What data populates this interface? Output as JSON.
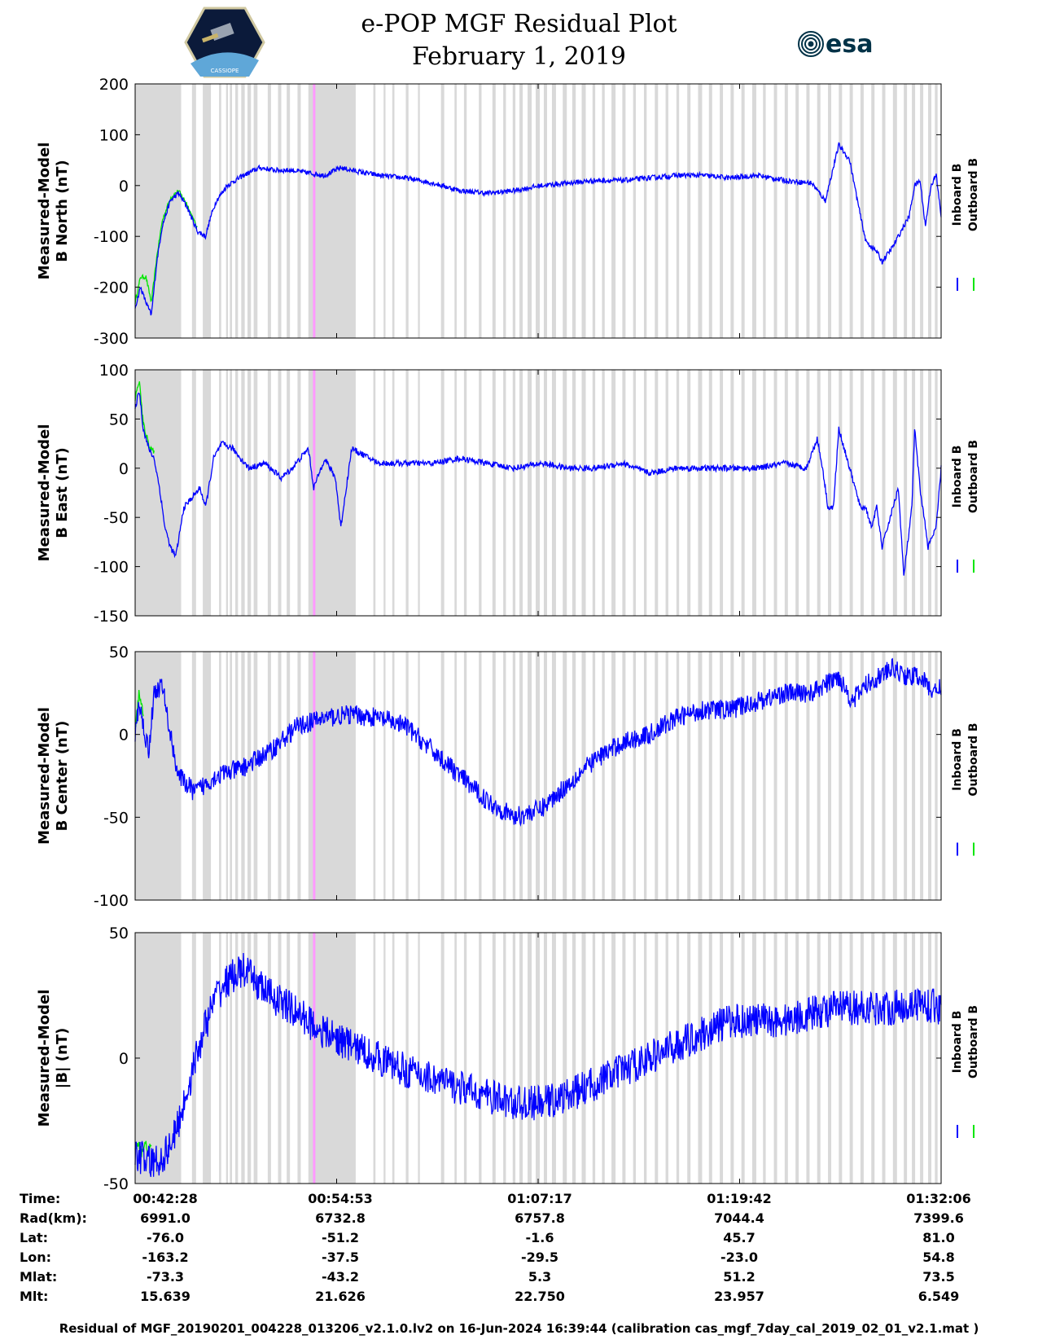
{
  "header": {
    "title_line1": "e-POP MGF Residual Plot",
    "title_line2": "February 1, 2019",
    "left_logo": "cassiope-mission-logo",
    "left_logo_text": "CASSIOPE",
    "right_logo": "esa-logo",
    "right_logo_text": "esa"
  },
  "colors": {
    "inboard": "#0000ff",
    "outboard": "#00e600",
    "shade": "#d9d9d9",
    "marker": "#ff99ff",
    "axis": "#000000"
  },
  "legend": {
    "inboard": "Inboard B",
    "outboard": "Outboard B"
  },
  "chart_data": [
    {
      "type": "line",
      "title": "",
      "ylabel": [
        "Measured-Model",
        "B North (nT)"
      ],
      "ylim": [
        -300,
        200
      ],
      "yticks": [
        200,
        100,
        0,
        -100,
        -200,
        -300
      ],
      "x_range_s": [
        0,
        2978
      ],
      "series": [
        {
          "name": "Inboard B",
          "noise": 5,
          "x": [
            0,
            20,
            40,
            60,
            80,
            100,
            130,
            160,
            190,
            230,
            260,
            280,
            300,
            340,
            400,
            460,
            520,
            580,
            640,
            700,
            760,
            800,
            900,
            1000,
            1100,
            1200,
            1300,
            1400,
            1500,
            1600,
            1700,
            1800,
            1900,
            2000,
            2100,
            2200,
            2300,
            2400,
            2500,
            2550,
            2600,
            2640,
            2680,
            2700,
            2740,
            2760,
            2800,
            2830,
            2860,
            2880,
            2900,
            2920,
            2940,
            2960,
            2978
          ],
          "y": [
            -240,
            -200,
            -230,
            -255,
            -150,
            -80,
            -30,
            -15,
            -40,
            -90,
            -100,
            -60,
            -30,
            0,
            20,
            35,
            30,
            30,
            25,
            20,
            35,
            30,
            20,
            15,
            5,
            -10,
            -15,
            -10,
            0,
            5,
            10,
            10,
            15,
            20,
            20,
            15,
            20,
            10,
            5,
            -30,
            80,
            50,
            -60,
            -110,
            -130,
            -150,
            -120,
            -90,
            -60,
            0,
            10,
            -80,
            0,
            20,
            -60
          ]
        },
        {
          "name": "Outboard B",
          "noise": 4,
          "x": [
            0,
            20,
            40,
            60,
            80,
            100,
            130,
            160,
            190,
            230
          ],
          "y": [
            -230,
            -180,
            -180,
            -230,
            -140,
            -70,
            -25,
            -10,
            -35,
            -85
          ]
        }
      ]
    },
    {
      "type": "line",
      "title": "",
      "ylabel": [
        "Measured-Model",
        "B East (nT)"
      ],
      "ylim": [
        -150,
        100
      ],
      "yticks": [
        100,
        50,
        0,
        -50,
        -100,
        -150
      ],
      "x_range_s": [
        0,
        2978
      ],
      "series": [
        {
          "name": "Inboard B",
          "noise": 3,
          "x": [
            0,
            15,
            30,
            50,
            70,
            90,
            110,
            130,
            150,
            180,
            210,
            240,
            260,
            290,
            320,
            360,
            420,
            480,
            540,
            580,
            640,
            660,
            700,
            740,
            760,
            800,
            900,
            1000,
            1100,
            1200,
            1300,
            1400,
            1500,
            1600,
            1700,
            1800,
            1900,
            2000,
            2100,
            2200,
            2300,
            2400,
            2480,
            2520,
            2540,
            2560,
            2580,
            2600,
            2640,
            2680,
            2700,
            2720,
            2740,
            2760,
            2780,
            2820,
            2840,
            2870,
            2880,
            2900,
            2930,
            2960,
            2978
          ],
          "y": [
            60,
            80,
            40,
            20,
            10,
            -20,
            -60,
            -80,
            -90,
            -40,
            -30,
            -20,
            -40,
            10,
            25,
            20,
            0,
            5,
            -10,
            0,
            20,
            -20,
            10,
            -10,
            -60,
            20,
            5,
            5,
            5,
            10,
            5,
            0,
            5,
            0,
            0,
            5,
            -5,
            0,
            0,
            0,
            0,
            5,
            0,
            30,
            0,
            -40,
            -40,
            40,
            0,
            -40,
            -40,
            -60,
            -40,
            -80,
            -60,
            -20,
            -110,
            -40,
            40,
            -20,
            -80,
            -60,
            0
          ]
        },
        {
          "name": "Outboard B",
          "noise": 3,
          "x": [
            0,
            15,
            30,
            50,
            70
          ],
          "y": [
            70,
            90,
            45,
            25,
            15
          ]
        }
      ]
    },
    {
      "type": "line",
      "title": "",
      "ylabel": [
        "Measured-Model",
        "B Center (nT)"
      ],
      "ylim": [
        -100,
        50
      ],
      "yticks": [
        50,
        0,
        -50,
        -100
      ],
      "x_range_s": [
        0,
        2978
      ],
      "series": [
        {
          "name": "Inboard B",
          "noise": 6,
          "x": [
            0,
            15,
            30,
            50,
            70,
            100,
            130,
            160,
            190,
            220,
            260,
            300,
            400,
            500,
            600,
            700,
            800,
            900,
            1000,
            1100,
            1200,
            1300,
            1400,
            1500,
            1600,
            1700,
            1800,
            1900,
            2000,
            2100,
            2200,
            2300,
            2400,
            2500,
            2600,
            2650,
            2700,
            2750,
            2800,
            2850,
            2900,
            2950,
            2978
          ],
          "y": [
            0,
            20,
            5,
            -10,
            25,
            30,
            0,
            -25,
            -30,
            -35,
            -30,
            -25,
            -20,
            -10,
            5,
            10,
            12,
            10,
            5,
            -10,
            -25,
            -40,
            -50,
            -45,
            -30,
            -15,
            -5,
            0,
            10,
            15,
            15,
            20,
            25,
            25,
            35,
            20,
            30,
            35,
            40,
            35,
            35,
            25,
            30
          ]
        },
        {
          "name": "Outboard B",
          "noise": 4,
          "x": [
            0,
            15,
            30
          ],
          "y": [
            5,
            25,
            10
          ]
        }
      ]
    },
    {
      "type": "line",
      "title": "",
      "ylabel": [
        "Measured-Model",
        "|B| (nT)"
      ],
      "ylim": [
        -50,
        50
      ],
      "yticks": [
        50,
        0,
        -50
      ],
      "x_range_s": [
        0,
        2978
      ],
      "series": [
        {
          "name": "Inboard B",
          "noise": 7,
          "x": [
            0,
            60,
            100,
            150,
            200,
            250,
            300,
            350,
            400,
            450,
            500,
            600,
            700,
            800,
            900,
            1000,
            1100,
            1200,
            1300,
            1400,
            1500,
            1600,
            1700,
            1800,
            1900,
            2000,
            2100,
            2200,
            2300,
            2400,
            2500,
            2600,
            2700,
            2800,
            2900,
            2978
          ],
          "y": [
            -38,
            -42,
            -40,
            -30,
            -10,
            10,
            25,
            32,
            35,
            30,
            25,
            18,
            10,
            5,
            0,
            -5,
            -8,
            -12,
            -15,
            -18,
            -18,
            -15,
            -10,
            -5,
            0,
            5,
            10,
            15,
            15,
            15,
            18,
            20,
            20,
            20,
            22,
            20
          ]
        },
        {
          "name": "Outboard B",
          "noise": 3,
          "x": [
            0,
            20,
            40,
            60
          ],
          "y": [
            -35,
            -37,
            -36,
            -36
          ]
        }
      ]
    }
  ],
  "gaps": {
    "marker_s": 660,
    "regions_s": [
      [
        0,
        170
      ],
      [
        210,
        225
      ],
      [
        250,
        280
      ],
      [
        310,
        318
      ],
      [
        336,
        343
      ],
      [
        350,
        358
      ],
      [
        370,
        380
      ],
      [
        392,
        405
      ],
      [
        415,
        428
      ],
      [
        438,
        452
      ],
      [
        490,
        502
      ],
      [
        528,
        540
      ],
      [
        560,
        572
      ],
      [
        600,
        612
      ],
      [
        640,
        815
      ],
      [
        880,
        888
      ],
      [
        918,
        925
      ],
      [
        950,
        958
      ],
      [
        1000,
        1010
      ],
      [
        1045,
        1052
      ],
      [
        1130,
        1142
      ],
      [
        1180,
        1188
      ],
      [
        1215,
        1225
      ],
      [
        1270,
        1280
      ],
      [
        1320,
        1332
      ],
      [
        1360,
        1370
      ],
      [
        1395,
        1405
      ],
      [
        1420,
        1432
      ],
      [
        1450,
        1465
      ],
      [
        1480,
        1495
      ],
      [
        1510,
        1522
      ],
      [
        1540,
        1555
      ],
      [
        1580,
        1595
      ],
      [
        1615,
        1628
      ],
      [
        1650,
        1665
      ],
      [
        1690,
        1700
      ],
      [
        1725,
        1735
      ],
      [
        1760,
        1775
      ],
      [
        1800,
        1812
      ],
      [
        1840,
        1850
      ],
      [
        1880,
        1890
      ],
      [
        1920,
        1932
      ],
      [
        1960,
        1970
      ],
      [
        2000,
        2010
      ],
      [
        2040,
        2052
      ],
      [
        2080,
        2095
      ],
      [
        2120,
        2132
      ],
      [
        2160,
        2172
      ],
      [
        2200,
        2212
      ],
      [
        2240,
        2252
      ],
      [
        2280,
        2295
      ],
      [
        2320,
        2330
      ],
      [
        2360,
        2372
      ],
      [
        2400,
        2412
      ],
      [
        2440,
        2452
      ],
      [
        2480,
        2492
      ],
      [
        2520,
        2532
      ],
      [
        2560,
        2572
      ],
      [
        2600,
        2612
      ],
      [
        2640,
        2652
      ],
      [
        2680,
        2692
      ],
      [
        2720,
        2732
      ],
      [
        2760,
        2772
      ],
      [
        2800,
        2815
      ],
      [
        2840,
        2852
      ],
      [
        2870,
        2882
      ],
      [
        2900,
        2912
      ],
      [
        2930,
        2942
      ],
      [
        2955,
        2965
      ]
    ]
  },
  "info": {
    "rows": [
      {
        "label": "Time:",
        "values": [
          "00:42:28",
          "00:54:53",
          "01:07:17",
          "01:19:42",
          "01:32:06"
        ]
      },
      {
        "label": "Rad(km):",
        "values": [
          "6991.0",
          "6732.8",
          "6757.8",
          "7044.4",
          "7399.6"
        ]
      },
      {
        "label": "Lat:",
        "values": [
          "-76.0",
          "-51.2",
          "-1.6",
          "45.7",
          "81.0"
        ]
      },
      {
        "label": "Lon:",
        "values": [
          "-163.2",
          "-37.5",
          "-29.5",
          "-23.0",
          "54.8"
        ]
      },
      {
        "label": "Mlat:",
        "values": [
          "-73.3",
          "-43.2",
          "5.3",
          "51.2",
          "73.5"
        ]
      },
      {
        "label": "Mlt:",
        "values": [
          "15.639",
          "21.626",
          "22.750",
          "23.957",
          "6.549"
        ]
      }
    ]
  },
  "footer": "Residual of MGF_20190201_004228_013206_v2.1.0.lv2 on 16-Jun-2024 16:39:44 (calibration cas_mgf_7day_cal_2019_02_01_v2.1.mat )"
}
